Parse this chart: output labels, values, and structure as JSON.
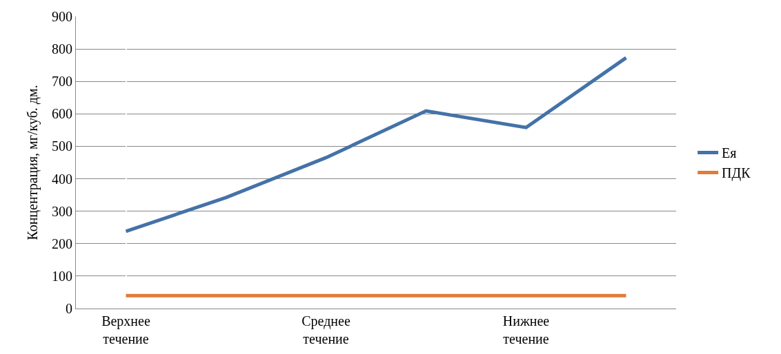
{
  "chart_data": {
    "type": "line",
    "ylabel": "Концентрация, мг/куб. дм.",
    "categories": [
      "Верхнее течение",
      null,
      "Среднее течение",
      null,
      "Нижнее течение",
      null
    ],
    "series": [
      {
        "name": "Ея",
        "color": "#4472a8",
        "values": [
          238,
          342,
          465,
          609,
          558,
          773
        ]
      },
      {
        "name": "ПДК",
        "color": "#e07b39",
        "values": [
          40,
          40,
          40,
          40,
          40,
          40
        ]
      }
    ],
    "ylim": [
      0,
      900
    ],
    "yticks": [
      0,
      100,
      200,
      300,
      400,
      500,
      600,
      700,
      800,
      900
    ],
    "grid": "y",
    "legend": "right",
    "marker": "none",
    "line_style": "solid"
  }
}
